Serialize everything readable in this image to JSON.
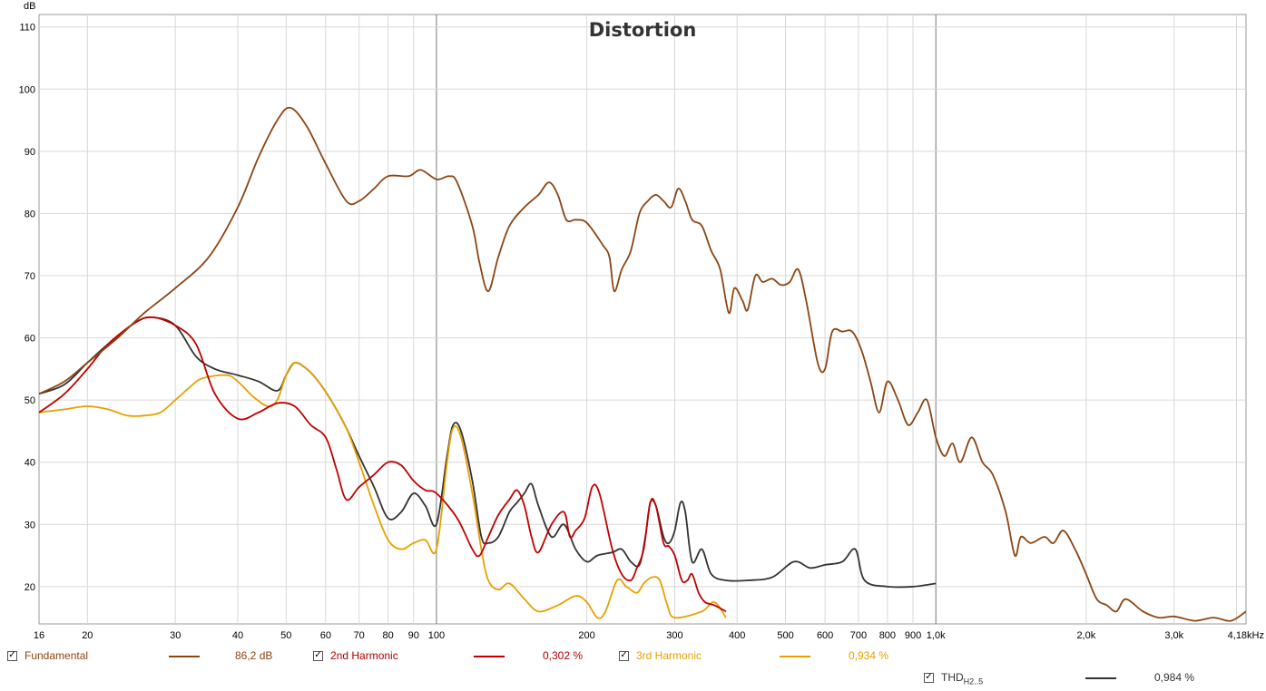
{
  "chart_data": {
    "type": "line",
    "title": "Distortion",
    "ylabel": "dB",
    "xscale": "log",
    "xlim": [
      16,
      4180
    ],
    "ylim": [
      14,
      112
    ],
    "grid": true,
    "yticks": [
      20,
      30,
      40,
      50,
      60,
      70,
      80,
      90,
      100,
      110
    ],
    "xticks": [
      {
        "v": 16,
        "label": "16"
      },
      {
        "v": 20,
        "label": "20"
      },
      {
        "v": 30,
        "label": "30"
      },
      {
        "v": 40,
        "label": "40"
      },
      {
        "v": 50,
        "label": "50"
      },
      {
        "v": 60,
        "label": "60"
      },
      {
        "v": 70,
        "label": "70"
      },
      {
        "v": 80,
        "label": "80"
      },
      {
        "v": 90,
        "label": "90"
      },
      {
        "v": 100,
        "label": "100"
      },
      {
        "v": 200,
        "label": "200"
      },
      {
        "v": 300,
        "label": "300"
      },
      {
        "v": 400,
        "label": "400"
      },
      {
        "v": 500,
        "label": "500"
      },
      {
        "v": 600,
        "label": "600"
      },
      {
        "v": 700,
        "label": "700"
      },
      {
        "v": 800,
        "label": "800"
      },
      {
        "v": 900,
        "label": "900"
      },
      {
        "v": 1000,
        "label": "1,0k"
      },
      {
        "v": 2000,
        "label": "2,0k"
      },
      {
        "v": 3000,
        "label": "3,0k"
      },
      {
        "v": 4180,
        "label": "4,18kHz"
      }
    ],
    "series": [
      {
        "name": "Fundamental",
        "color": "#8B4513",
        "points": [
          [
            16,
            51
          ],
          [
            18,
            53
          ],
          [
            20,
            56
          ],
          [
            23,
            60
          ],
          [
            26,
            64
          ],
          [
            30,
            68
          ],
          [
            35,
            73
          ],
          [
            40,
            81
          ],
          [
            44,
            89
          ],
          [
            48,
            95
          ],
          [
            51,
            97
          ],
          [
            55,
            94
          ],
          [
            60,
            88
          ],
          [
            66,
            82
          ],
          [
            70,
            82
          ],
          [
            75,
            84
          ],
          [
            80,
            86
          ],
          [
            88,
            86
          ],
          [
            93,
            87
          ],
          [
            100,
            85.5
          ],
          [
            106,
            86
          ],
          [
            110,
            85
          ],
          [
            118,
            78
          ],
          [
            122,
            72
          ],
          [
            127,
            67.5
          ],
          [
            133,
            73
          ],
          [
            140,
            78
          ],
          [
            150,
            81
          ],
          [
            160,
            83
          ],
          [
            168,
            85
          ],
          [
            175,
            83
          ],
          [
            182,
            79
          ],
          [
            190,
            79
          ],
          [
            200,
            78.5
          ],
          [
            215,
            75
          ],
          [
            222,
            73
          ],
          [
            227,
            67.5
          ],
          [
            235,
            71
          ],
          [
            245,
            74
          ],
          [
            255,
            80
          ],
          [
            265,
            82
          ],
          [
            275,
            83
          ],
          [
            285,
            82
          ],
          [
            295,
            81
          ],
          [
            305,
            84
          ],
          [
            315,
            82
          ],
          [
            325,
            79
          ],
          [
            340,
            78
          ],
          [
            355,
            74
          ],
          [
            370,
            71
          ],
          [
            385,
            64
          ],
          [
            395,
            68
          ],
          [
            410,
            66
          ],
          [
            420,
            64.5
          ],
          [
            435,
            70
          ],
          [
            450,
            69
          ],
          [
            470,
            69.5
          ],
          [
            490,
            68.5
          ],
          [
            510,
            69
          ],
          [
            530,
            71
          ],
          [
            550,
            66
          ],
          [
            580,
            56
          ],
          [
            600,
            55
          ],
          [
            620,
            61
          ],
          [
            650,
            61
          ],
          [
            680,
            61
          ],
          [
            710,
            58
          ],
          [
            740,
            53
          ],
          [
            770,
            48
          ],
          [
            800,
            53
          ],
          [
            840,
            50
          ],
          [
            880,
            46
          ],
          [
            920,
            48
          ],
          [
            960,
            50
          ],
          [
            1000,
            44
          ],
          [
            1040,
            41
          ],
          [
            1080,
            43
          ],
          [
            1120,
            40
          ],
          [
            1180,
            44
          ],
          [
            1240,
            40
          ],
          [
            1300,
            38
          ],
          [
            1380,
            32
          ],
          [
            1440,
            25
          ],
          [
            1480,
            28
          ],
          [
            1550,
            27
          ],
          [
            1650,
            28
          ],
          [
            1720,
            27
          ],
          [
            1800,
            29
          ],
          [
            1900,
            26
          ],
          [
            2000,
            22
          ],
          [
            2100,
            18
          ],
          [
            2200,
            17
          ],
          [
            2300,
            16
          ],
          [
            2400,
            18
          ],
          [
            2600,
            16
          ],
          [
            2800,
            15
          ],
          [
            3000,
            15.2
          ],
          [
            3300,
            14.5
          ],
          [
            3600,
            15
          ],
          [
            3900,
            14.5
          ],
          [
            4180,
            16
          ]
        ]
      },
      {
        "name": "2nd Harmonic",
        "color": "#C00000",
        "points": [
          [
            16,
            48
          ],
          [
            18,
            51
          ],
          [
            20,
            55
          ],
          [
            22,
            59
          ],
          [
            25,
            62.5
          ],
          [
            27,
            63.3
          ],
          [
            30,
            62
          ],
          [
            33,
            59
          ],
          [
            36,
            51
          ],
          [
            40,
            47
          ],
          [
            44,
            48
          ],
          [
            48,
            49.5
          ],
          [
            52,
            49
          ],
          [
            56,
            46
          ],
          [
            60,
            44
          ],
          [
            63,
            39
          ],
          [
            66,
            34
          ],
          [
            70,
            36
          ],
          [
            75,
            38
          ],
          [
            80,
            40
          ],
          [
            85,
            39.5
          ],
          [
            90,
            37
          ],
          [
            95,
            35.5
          ],
          [
            100,
            35
          ],
          [
            110,
            31
          ],
          [
            118,
            26
          ],
          [
            122,
            25
          ],
          [
            127,
            28
          ],
          [
            133,
            31.5
          ],
          [
            140,
            34
          ],
          [
            145,
            35.5
          ],
          [
            150,
            33
          ],
          [
            155,
            28
          ],
          [
            160,
            25.5
          ],
          [
            170,
            30
          ],
          [
            180,
            32
          ],
          [
            185,
            28
          ],
          [
            190,
            29
          ],
          [
            198,
            31
          ],
          [
            205,
            36
          ],
          [
            212,
            35
          ],
          [
            225,
            26
          ],
          [
            235,
            22
          ],
          [
            245,
            21
          ],
          [
            252,
            23
          ],
          [
            260,
            26
          ],
          [
            268,
            33.5
          ],
          [
            275,
            33
          ],
          [
            285,
            27
          ],
          [
            292,
            26.5
          ],
          [
            300,
            25
          ],
          [
            310,
            21
          ],
          [
            318,
            21
          ],
          [
            325,
            22
          ],
          [
            335,
            19
          ],
          [
            345,
            17.5
          ],
          [
            360,
            17
          ],
          [
            380,
            16
          ]
        ]
      },
      {
        "name": "3rd Harmonic",
        "color": "#E8A000",
        "points": [
          [
            16,
            48
          ],
          [
            18,
            48.5
          ],
          [
            20,
            49
          ],
          [
            22,
            48.5
          ],
          [
            24,
            47.5
          ],
          [
            26,
            47.5
          ],
          [
            28,
            48
          ],
          [
            30,
            50
          ],
          [
            32,
            52
          ],
          [
            34,
            53.5
          ],
          [
            38,
            54
          ],
          [
            40,
            53
          ],
          [
            43,
            50.5
          ],
          [
            46,
            49
          ],
          [
            48,
            50
          ],
          [
            50,
            54
          ],
          [
            52,
            56
          ],
          [
            55,
            55
          ],
          [
            58,
            53
          ],
          [
            62,
            49.5
          ],
          [
            66,
            45.5
          ],
          [
            70,
            40
          ],
          [
            75,
            33
          ],
          [
            80,
            27.5
          ],
          [
            85,
            26
          ],
          [
            90,
            27
          ],
          [
            95,
            27.5
          ],
          [
            100,
            26
          ],
          [
            105,
            40
          ],
          [
            108,
            45.5
          ],
          [
            112,
            44
          ],
          [
            118,
            35
          ],
          [
            123,
            26
          ],
          [
            127,
            21
          ],
          [
            133,
            19.5
          ],
          [
            140,
            20.5
          ],
          [
            150,
            18
          ],
          [
            160,
            16
          ],
          [
            175,
            17
          ],
          [
            190,
            18.5
          ],
          [
            200,
            17.5
          ],
          [
            210,
            15
          ],
          [
            218,
            16
          ],
          [
            230,
            21
          ],
          [
            240,
            20
          ],
          [
            252,
            19
          ],
          [
            260,
            20.5
          ],
          [
            270,
            21.5
          ],
          [
            280,
            21
          ],
          [
            290,
            17
          ],
          [
            300,
            15
          ],
          [
            340,
            16
          ],
          [
            360,
            17.5
          ],
          [
            380,
            15
          ]
        ]
      },
      {
        "name": "THD",
        "color": "#333333",
        "points": [
          [
            16,
            51
          ],
          [
            18,
            52.5
          ],
          [
            20,
            56
          ],
          [
            22,
            59
          ],
          [
            25,
            62.5
          ],
          [
            27,
            63.3
          ],
          [
            30,
            62
          ],
          [
            33,
            57
          ],
          [
            36,
            55
          ],
          [
            40,
            54
          ],
          [
            44,
            53
          ],
          [
            48,
            51.5
          ],
          [
            50,
            54
          ],
          [
            52,
            56
          ],
          [
            55,
            55
          ],
          [
            58,
            53
          ],
          [
            62,
            49.5
          ],
          [
            66,
            45.5
          ],
          [
            70,
            41
          ],
          [
            75,
            36
          ],
          [
            80,
            31
          ],
          [
            85,
            32
          ],
          [
            90,
            35
          ],
          [
            95,
            33
          ],
          [
            100,
            30
          ],
          [
            105,
            41
          ],
          [
            108,
            46
          ],
          [
            112,
            45
          ],
          [
            118,
            37
          ],
          [
            123,
            28
          ],
          [
            127,
            27
          ],
          [
            133,
            28
          ],
          [
            140,
            32
          ],
          [
            145,
            33.5
          ],
          [
            150,
            35
          ],
          [
            155,
            36.5
          ],
          [
            160,
            33
          ],
          [
            170,
            28
          ],
          [
            180,
            30
          ],
          [
            190,
            26
          ],
          [
            200,
            24
          ],
          [
            210,
            25
          ],
          [
            225,
            25.5
          ],
          [
            235,
            26
          ],
          [
            245,
            24
          ],
          [
            255,
            23.5
          ],
          [
            262,
            28
          ],
          [
            268,
            33.5
          ],
          [
            275,
            33
          ],
          [
            285,
            28
          ],
          [
            292,
            27
          ],
          [
            300,
            29
          ],
          [
            308,
            33.5
          ],
          [
            315,
            32
          ],
          [
            325,
            24
          ],
          [
            340,
            26
          ],
          [
            355,
            22
          ],
          [
            380,
            21
          ],
          [
            420,
            21
          ],
          [
            470,
            21.5
          ],
          [
            520,
            24
          ],
          [
            560,
            23
          ],
          [
            600,
            23.5
          ],
          [
            650,
            24
          ],
          [
            690,
            26
          ],
          [
            720,
            21
          ],
          [
            800,
            20
          ],
          [
            900,
            20
          ],
          [
            1000,
            20.5
          ]
        ]
      }
    ]
  },
  "legend": [
    {
      "label": "Fundamental",
      "value": "86,2 dB",
      "checked": "✓"
    },
    {
      "label": "2nd Harmonic",
      "value": "0,302 %",
      "checked": "✓"
    },
    {
      "label": "3rd Harmonic",
      "value": "0,934 %",
      "checked": "✓"
    },
    {
      "label": "THD",
      "sub": "H2..5",
      "value": "0,984 %",
      "checked": "✓"
    }
  ]
}
